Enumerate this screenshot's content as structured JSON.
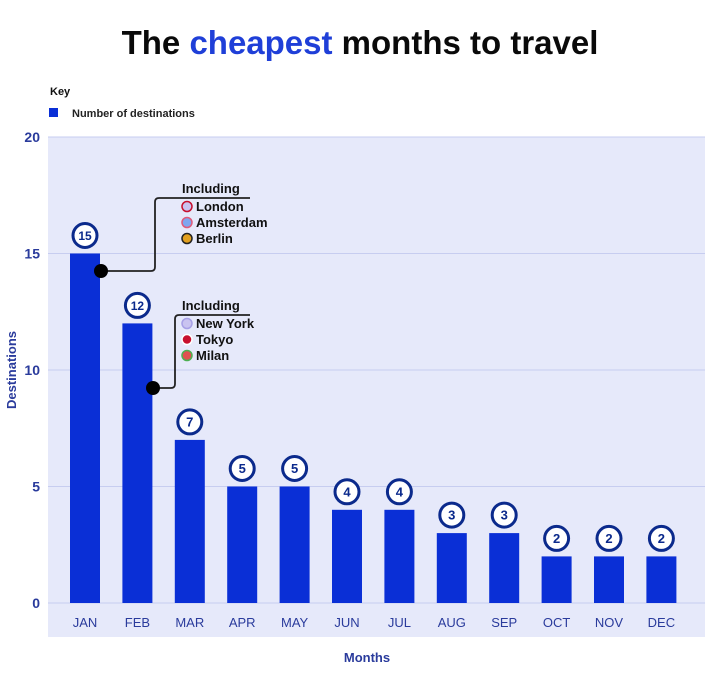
{
  "title": {
    "part1": "The ",
    "highlight": "cheapest",
    "part2": " months to travel"
  },
  "colors": {
    "bar": "#0a2fd6",
    "plot_bg": "#e6e9fa",
    "grid": "#c7cdf0",
    "axis_text": "#2a3b9c",
    "highlight": "#1f3fd8",
    "title": "#0a0a0a"
  },
  "legend": {
    "heading": "Key",
    "items": [
      {
        "label": "Number of destinations",
        "color": "#0a2fd6"
      }
    ]
  },
  "chart_data": {
    "type": "bar",
    "categories": [
      "JAN",
      "FEB",
      "MAR",
      "APR",
      "MAY",
      "JUN",
      "JUL",
      "AUG",
      "SEP",
      "OCT",
      "NOV",
      "DEC"
    ],
    "values": [
      15,
      12,
      7,
      5,
      5,
      4,
      4,
      3,
      3,
      2,
      2,
      2
    ],
    "xlabel": "Months",
    "ylabel": "Destinations",
    "ylim": [
      0,
      20
    ],
    "yticks": [
      0,
      5,
      10,
      15,
      20
    ],
    "grid": true,
    "legend_position": "top-left",
    "annotations": [
      {
        "category": "JAN",
        "heading": "Including",
        "items": [
          {
            "label": "London",
            "flag": "uk"
          },
          {
            "label": "Amsterdam",
            "flag": "netherlands"
          },
          {
            "label": "Berlin",
            "flag": "germany"
          }
        ]
      },
      {
        "category": "FEB",
        "heading": "Including",
        "items": [
          {
            "label": "New York",
            "flag": "usa"
          },
          {
            "label": "Tokyo",
            "flag": "japan"
          },
          {
            "label": "Milan",
            "flag": "italy"
          }
        ]
      }
    ]
  }
}
